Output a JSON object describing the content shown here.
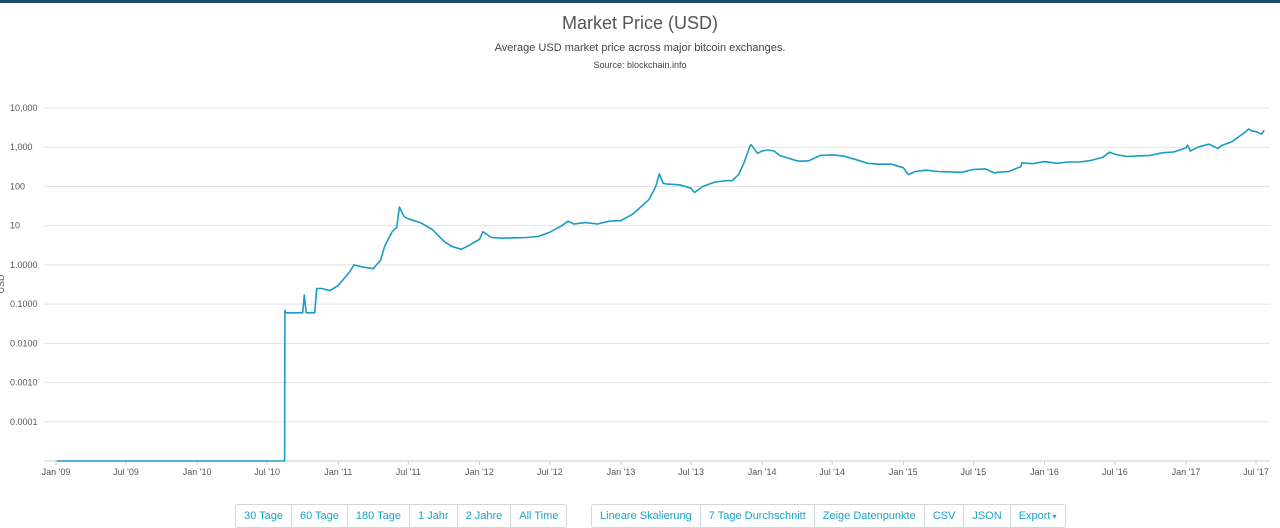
{
  "chart_data": {
    "type": "line",
    "title": "Market Price (USD)",
    "subtitle": "Average USD market price across major bitcoin exchanges.",
    "source": "Source: blockchain.info",
    "ylabel": "USD",
    "yscale": "log",
    "ylim": [
      1e-05,
      10000
    ],
    "grid": true,
    "line_color": "#1a9bc7",
    "y_ticks": [
      {
        "value": 10000,
        "label": "10,000"
      },
      {
        "value": 1000,
        "label": "1,000"
      },
      {
        "value": 100,
        "label": "100"
      },
      {
        "value": 10,
        "label": "10"
      },
      {
        "value": 1,
        "label": "1.0000"
      },
      {
        "value": 0.1,
        "label": "0.1000"
      },
      {
        "value": 0.01,
        "label": "0.0100"
      },
      {
        "value": 0.001,
        "label": "0.0010"
      },
      {
        "value": 0.0001,
        "label": "0.0001"
      }
    ],
    "x_ticks": [
      {
        "date": "2009-01-01",
        "label": "Jan '09"
      },
      {
        "date": "2009-07-01",
        "label": "Jul '09"
      },
      {
        "date": "2010-01-01",
        "label": "Jan '10"
      },
      {
        "date": "2010-07-01",
        "label": "Jul '10"
      },
      {
        "date": "2011-01-01",
        "label": "Jan '11"
      },
      {
        "date": "2011-07-01",
        "label": "Jul '11"
      },
      {
        "date": "2012-01-01",
        "label": "Jan '12"
      },
      {
        "date": "2012-07-01",
        "label": "Jul '12"
      },
      {
        "date": "2013-01-01",
        "label": "Jan '13"
      },
      {
        "date": "2013-07-01",
        "label": "Jul '13"
      },
      {
        "date": "2014-01-01",
        "label": "Jan '14"
      },
      {
        "date": "2014-07-01",
        "label": "Jul '14"
      },
      {
        "date": "2015-01-01",
        "label": "Jan '15"
      },
      {
        "date": "2015-07-01",
        "label": "Jul '15"
      },
      {
        "date": "2016-01-01",
        "label": "Jan '16"
      },
      {
        "date": "2016-07-01",
        "label": "Jul '16"
      },
      {
        "date": "2017-01-01",
        "label": "Jan '17"
      },
      {
        "date": "2017-07-01",
        "label": "Jul '17"
      }
    ],
    "series": [
      {
        "x": [
          "2009-01-03",
          "2010-08-15",
          "2010-08-16",
          "2010-08-17",
          "2010-09-15",
          "2010-10-01",
          "2010-10-05",
          "2010-10-10",
          "2010-11-01",
          "2010-11-06",
          "2010-11-20",
          "2010-12-10",
          "2011-01-01",
          "2011-02-01",
          "2011-02-10",
          "2011-03-01",
          "2011-04-01",
          "2011-04-20",
          "2011-05-01",
          "2011-05-20",
          "2011-06-01",
          "2011-06-08",
          "2011-06-20",
          "2011-07-01",
          "2011-08-01",
          "2011-08-15",
          "2011-09-01",
          "2011-10-01",
          "2011-10-20",
          "2011-11-15",
          "2011-12-01",
          "2012-01-01",
          "2012-01-10",
          "2012-02-01",
          "2012-03-01",
          "2012-04-01",
          "2012-05-01",
          "2012-06-01",
          "2012-07-01",
          "2012-08-01",
          "2012-08-17",
          "2012-09-01",
          "2012-10-01",
          "2012-11-01",
          "2012-12-01",
          "2013-01-01",
          "2013-02-01",
          "2013-03-01",
          "2013-03-15",
          "2013-04-01",
          "2013-04-10",
          "2013-04-20",
          "2013-05-01",
          "2013-06-01",
          "2013-07-01",
          "2013-07-10",
          "2013-08-01",
          "2013-09-01",
          "2013-10-01",
          "2013-10-15",
          "2013-11-01",
          "2013-11-15",
          "2013-12-01",
          "2013-12-04",
          "2013-12-20",
          "2014-01-01",
          "2014-01-15",
          "2014-02-01",
          "2014-02-15",
          "2014-03-01",
          "2014-04-01",
          "2014-04-10",
          "2014-05-01",
          "2014-06-01",
          "2014-07-01",
          "2014-08-01",
          "2014-09-01",
          "2014-10-01",
          "2014-11-01",
          "2014-12-01",
          "2015-01-01",
          "2015-01-14",
          "2015-02-01",
          "2015-03-01",
          "2015-04-01",
          "2015-05-01",
          "2015-06-01",
          "2015-07-01",
          "2015-08-01",
          "2015-08-25",
          "2015-09-01",
          "2015-10-01",
          "2015-11-01",
          "2015-11-04",
          "2015-12-01",
          "2016-01-01",
          "2016-02-01",
          "2016-03-01",
          "2016-04-01",
          "2016-05-01",
          "2016-06-01",
          "2016-06-17",
          "2016-07-01",
          "2016-08-01",
          "2016-09-01",
          "2016-10-01",
          "2016-11-01",
          "2016-12-01",
          "2017-01-01",
          "2017-01-05",
          "2017-01-12",
          "2017-02-01",
          "2017-03-01",
          "2017-03-25",
          "2017-04-01",
          "2017-05-01",
          "2017-05-25",
          "2017-06-01",
          "2017-06-12",
          "2017-06-20",
          "2017-07-01",
          "2017-07-15",
          "2017-07-22"
        ],
        "y": [
          1e-05,
          1e-05,
          0.07,
          0.06,
          0.06,
          0.06,
          0.17,
          0.06,
          0.06,
          0.25,
          0.25,
          0.22,
          0.3,
          0.7,
          1.0,
          0.9,
          0.8,
          1.3,
          3.0,
          7.0,
          9.0,
          30.0,
          17.0,
          15.0,
          12.0,
          10.0,
          8.0,
          4.0,
          3.0,
          2.5,
          3.0,
          4.5,
          7.0,
          5.0,
          4.8,
          4.9,
          5.0,
          5.3,
          6.8,
          10.0,
          13.0,
          11.0,
          12.0,
          11.0,
          13.0,
          13.5,
          20.0,
          35.0,
          47.0,
          100.0,
          210.0,
          120.0,
          115.0,
          110.0,
          90.0,
          70.0,
          100.0,
          130.0,
          140.0,
          140.0,
          200.0,
          400.0,
          1100.0,
          1150.0,
          700.0,
          800.0,
          850.0,
          800.0,
          620.0,
          560.0,
          450.0,
          440.0,
          450.0,
          620.0,
          640.0,
          590.0,
          480.0,
          390.0,
          370.0,
          370.0,
          300.0,
          200.0,
          240.0,
          260.0,
          240.0,
          235.0,
          230.0,
          270.0,
          280.0,
          220.0,
          230.0,
          240.0,
          320.0,
          400.0,
          380.0,
          430.0,
          390.0,
          420.0,
          420.0,
          460.0,
          560.0,
          750.0,
          660.0,
          580.0,
          600.0,
          620.0,
          720.0,
          760.0,
          960.0,
          1130.0,
          800.0,
          1000.0,
          1200.0,
          930.0,
          1080.0,
          1400.0,
          2100.0,
          2350.0,
          2900.0,
          2600.0,
          2500.0,
          2150.0,
          2700.0
        ]
      }
    ]
  },
  "controls": {
    "range_buttons": [
      "30 Tage",
      "60 Tage",
      "180 Tage",
      "1 Jahr",
      "2 Jahre",
      "All Time"
    ],
    "option_buttons": [
      "Lineare Skalierung",
      "7 Tage Durchschnitt",
      "Zeige Datenpunkte",
      "CSV",
      "JSON",
      "Export"
    ],
    "export_caret": "▾"
  }
}
